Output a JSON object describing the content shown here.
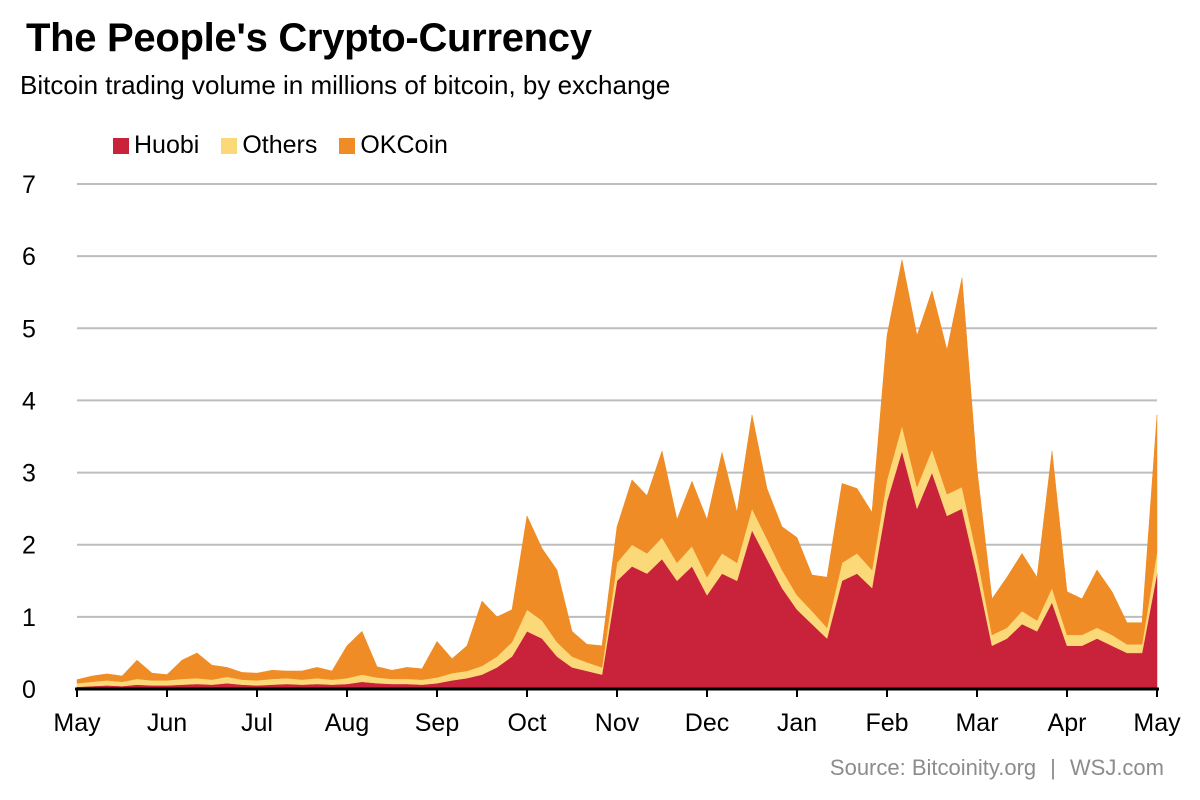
{
  "title": "The People's Crypto-Currency",
  "subtitle": "Bitcoin trading volume in millions of bitcoin, by exchange",
  "source": {
    "left": "Source: Bitcoinity.org",
    "separator": "|",
    "right": "WSJ.com"
  },
  "colors": {
    "huobi": "#c8233a",
    "others": "#fbd878",
    "okcoin": "#ef8c25",
    "grid": "#bdbdbd",
    "axis": "#000000",
    "source_text": "#8c8c8c"
  },
  "chart_data": {
    "type": "area",
    "stacked": true,
    "title": "The People's Crypto-Currency",
    "subtitle": "Bitcoin trading volume in millions of bitcoin, by exchange",
    "xlabel": "",
    "ylabel": "",
    "ylim": [
      0,
      7
    ],
    "yticks": [
      "0",
      "1",
      "2",
      "3",
      "4",
      "5",
      "6",
      "7"
    ],
    "xticks": [
      "May",
      "Jun",
      "Jul",
      "Aug",
      "Sep",
      "Oct",
      "Nov",
      "Dec",
      "Jan",
      "Feb",
      "Mar",
      "Apr",
      "May"
    ],
    "grid": true,
    "legend_position": "top-left",
    "x": [
      "May",
      "May",
      "May",
      "May",
      "May",
      "May",
      "Jun",
      "Jun",
      "Jun",
      "Jun",
      "Jun",
      "Jun",
      "Jul",
      "Jul",
      "Jul",
      "Jul",
      "Jul",
      "Jul",
      "Aug",
      "Aug",
      "Aug",
      "Aug",
      "Aug",
      "Aug",
      "Sep",
      "Sep",
      "Sep",
      "Sep",
      "Sep",
      "Sep",
      "Oct",
      "Oct",
      "Oct",
      "Oct",
      "Oct",
      "Oct",
      "Nov",
      "Nov",
      "Nov",
      "Nov",
      "Nov",
      "Nov",
      "Dec",
      "Dec",
      "Dec",
      "Dec",
      "Dec",
      "Dec",
      "Jan",
      "Jan",
      "Jan",
      "Jan",
      "Jan",
      "Jan",
      "Feb",
      "Feb",
      "Feb",
      "Feb",
      "Feb",
      "Feb",
      "Mar",
      "Mar",
      "Mar",
      "Mar",
      "Mar",
      "Mar",
      "Apr",
      "Apr",
      "Apr",
      "Apr",
      "Apr",
      "Apr",
      "May"
    ],
    "series": [
      {
        "name": "Huobi",
        "color": "#c8233a",
        "values": [
          0.03,
          0.04,
          0.05,
          0.04,
          0.06,
          0.05,
          0.05,
          0.06,
          0.07,
          0.06,
          0.08,
          0.06,
          0.05,
          0.06,
          0.07,
          0.06,
          0.07,
          0.06,
          0.07,
          0.1,
          0.08,
          0.07,
          0.07,
          0.06,
          0.08,
          0.12,
          0.15,
          0.2,
          0.3,
          0.45,
          0.8,
          0.7,
          0.45,
          0.3,
          0.25,
          0.2,
          1.5,
          1.7,
          1.6,
          1.8,
          1.5,
          1.7,
          1.3,
          1.6,
          1.5,
          2.2,
          1.8,
          1.4,
          1.1,
          0.9,
          0.7,
          1.5,
          1.6,
          1.4,
          2.6,
          3.3,
          2.5,
          3.0,
          2.4,
          2.5,
          1.6,
          0.6,
          0.7,
          0.9,
          0.8,
          1.2,
          0.6,
          0.6,
          0.7,
          0.6,
          0.5,
          0.5,
          1.6
        ]
      },
      {
        "name": "Others",
        "color": "#fbd878",
        "values": [
          0.05,
          0.06,
          0.07,
          0.06,
          0.08,
          0.07,
          0.07,
          0.08,
          0.08,
          0.07,
          0.09,
          0.07,
          0.07,
          0.08,
          0.08,
          0.07,
          0.08,
          0.07,
          0.08,
          0.1,
          0.08,
          0.07,
          0.07,
          0.07,
          0.08,
          0.1,
          0.1,
          0.12,
          0.15,
          0.2,
          0.3,
          0.25,
          0.2,
          0.15,
          0.12,
          0.1,
          0.25,
          0.3,
          0.28,
          0.3,
          0.25,
          0.28,
          0.25,
          0.28,
          0.25,
          0.3,
          0.28,
          0.25,
          0.2,
          0.18,
          0.15,
          0.25,
          0.28,
          0.25,
          0.3,
          0.35,
          0.3,
          0.32,
          0.3,
          0.3,
          0.25,
          0.15,
          0.15,
          0.18,
          0.15,
          0.2,
          0.15,
          0.15,
          0.15,
          0.15,
          0.12,
          0.12,
          0.3
        ]
      },
      {
        "name": "OKCoin",
        "color": "#ef8c25",
        "values": [
          0.05,
          0.08,
          0.09,
          0.08,
          0.26,
          0.1,
          0.08,
          0.26,
          0.35,
          0.2,
          0.13,
          0.1,
          0.1,
          0.12,
          0.1,
          0.12,
          0.15,
          0.12,
          0.45,
          0.6,
          0.15,
          0.12,
          0.16,
          0.15,
          0.5,
          0.2,
          0.35,
          0.9,
          0.55,
          0.45,
          1.3,
          1.0,
          1.0,
          0.35,
          0.25,
          0.3,
          0.5,
          0.9,
          0.8,
          1.2,
          0.6,
          0.9,
          0.8,
          1.4,
          0.7,
          1.3,
          0.7,
          0.6,
          0.8,
          0.5,
          0.7,
          1.1,
          0.9,
          0.8,
          2.0,
          2.3,
          2.1,
          2.2,
          2.0,
          2.9,
          1.2,
          0.5,
          0.7,
          0.8,
          0.6,
          1.9,
          0.6,
          0.5,
          0.8,
          0.6,
          0.3,
          0.3,
          1.9
        ]
      }
    ]
  }
}
